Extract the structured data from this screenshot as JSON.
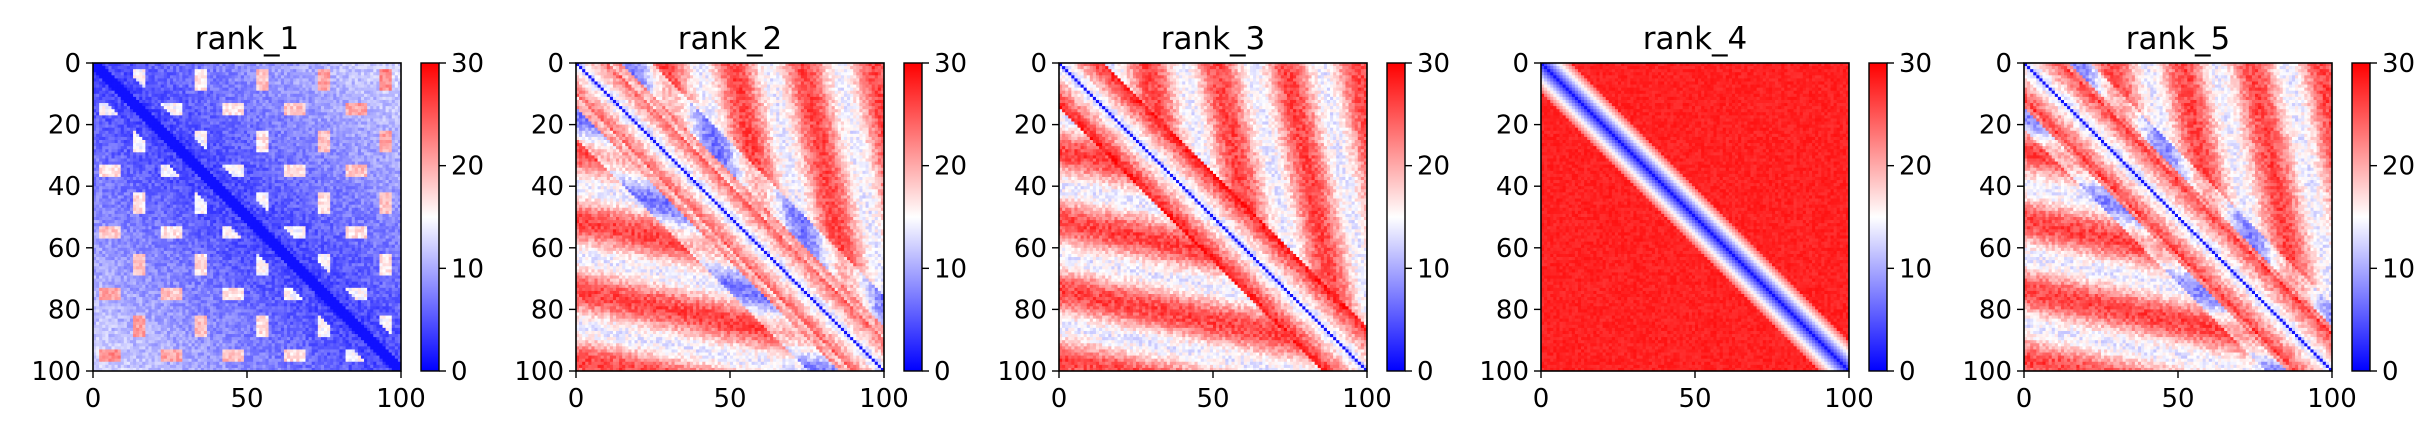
{
  "chart_data": {
    "type": "heatmap",
    "panels": [
      {
        "title": "rank_1",
        "pattern": "blue-diagonal-low-overall"
      },
      {
        "title": "rank_2",
        "pattern": "red-offdiagonal-blue-diagonal"
      },
      {
        "title": "rank_3",
        "pattern": "red-offdiagonal-blue-diagonal"
      },
      {
        "title": "rank_4",
        "pattern": "saturated-red-offdiagonal-blue-diagonal"
      },
      {
        "title": "rank_5",
        "pattern": "red-offdiagonal-blue-diagonal-stripes"
      }
    ],
    "matrix_size": 100,
    "x_ticks": [
      "0",
      "50",
      "100"
    ],
    "x_tick_values": [
      0,
      50,
      100
    ],
    "y_ticks": [
      "0",
      "20",
      "40",
      "60",
      "80",
      "100"
    ],
    "y_tick_values": [
      0,
      20,
      40,
      60,
      80,
      100
    ],
    "xlim": [
      0,
      100
    ],
    "ylim": [
      100,
      0
    ],
    "colorbar": {
      "ticks": [
        "0",
        "10",
        "20",
        "30"
      ],
      "tick_values": [
        0,
        10,
        20,
        30
      ],
      "range": [
        0,
        30
      ],
      "colormap": "bwr",
      "low_color": "#0000ff",
      "mid_color": "#ffffff",
      "high_color": "#ff0000"
    },
    "grid": false
  }
}
